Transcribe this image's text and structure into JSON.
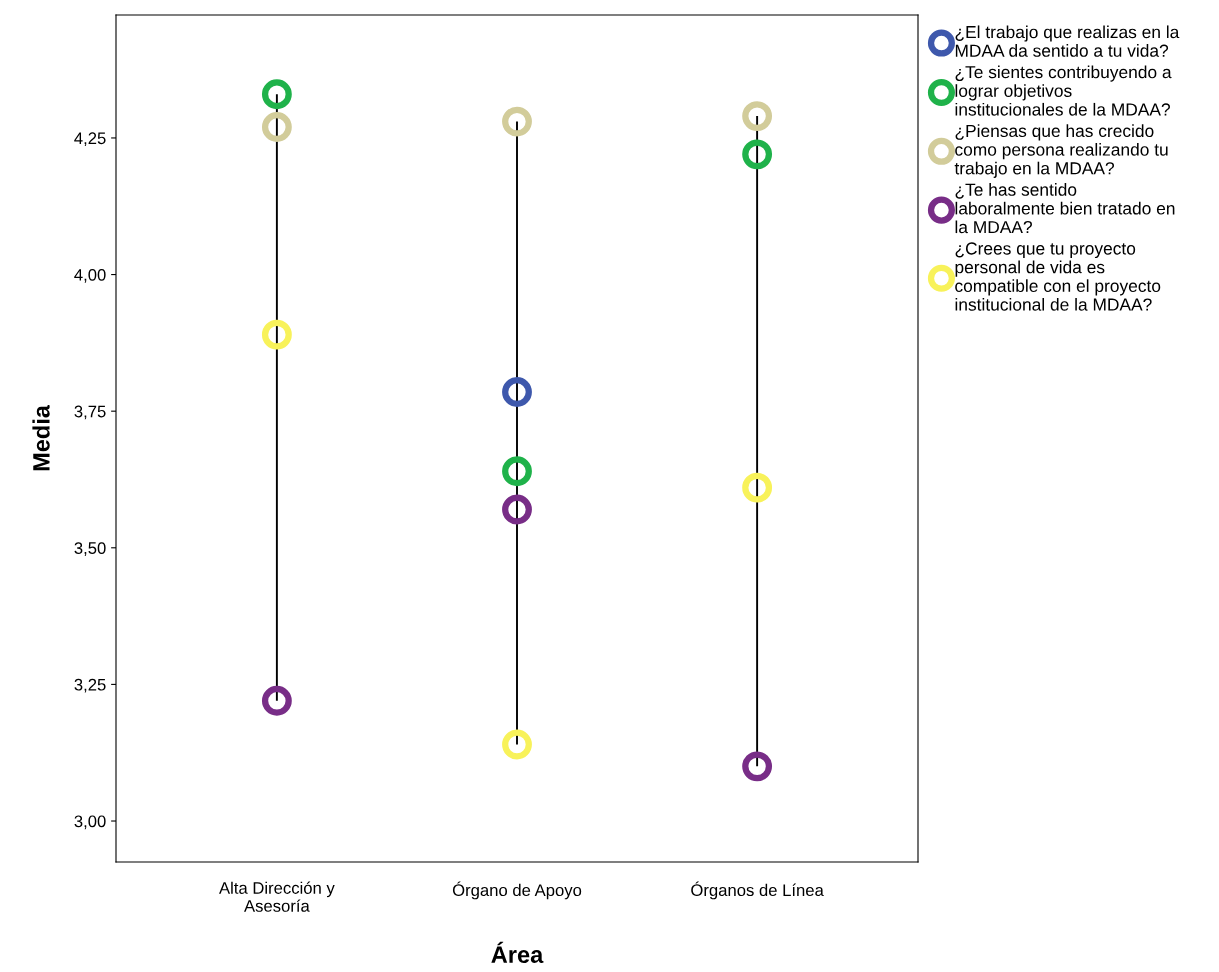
{
  "chart_data": {
    "type": "scatter",
    "xlabel": "Área",
    "ylabel": "Media",
    "categories": [
      "Alta Dirección y\nAsesoría",
      "Órgano de Apoyo",
      "Órganos de Línea"
    ],
    "ylim": [
      2.925,
      4.475
    ],
    "yticks": [
      {
        "value": 3.0,
        "label": "3,00"
      },
      {
        "value": 3.25,
        "label": "3,25"
      },
      {
        "value": 3.5,
        "label": "3,50"
      },
      {
        "value": 3.75,
        "label": "3,75"
      },
      {
        "value": 4.0,
        "label": "4,00"
      },
      {
        "value": 4.25,
        "label": "4,25"
      }
    ],
    "grid": false,
    "legend": "right",
    "marker": "circle",
    "series": [
      {
        "type": "bar",
        "color": "#000000",
        "base": [
          3.22,
          3.14,
          3.1
        ],
        "values": [
          1.11,
          1.14,
          1.19
        ]
      },
      {
        "name": "¿El trabajo que realizas en la\nMDAA da sentido a tu vida?",
        "color": "#3e58ac",
        "values": [
          null,
          3.785,
          null
        ]
      },
      {
        "name": "¿Te sientes contribuyendo a\nlograr objetivos\ninstitucionales de la MDAA?",
        "color": "#1fb24a",
        "values": [
          4.33,
          3.64,
          4.22
        ]
      },
      {
        "name": "¿Piensas que has crecido\ncomo persona realizando tu\ntrabajo en la MDAA?",
        "color": "#d2cc9a",
        "values": [
          4.27,
          4.28,
          4.29
        ]
      },
      {
        "name": "¿Te has sentido\nlaboralmente bien tratado en\nla MDAA?",
        "color": "#782d87",
        "values": [
          3.22,
          3.57,
          3.1
        ]
      },
      {
        "name": "¿Crees que tu proyecto\npersonal de vida es\ncompatible con el proyecto\ninstitucional de la MDAA?",
        "color": "#f8f25a",
        "values": [
          3.89,
          3.14,
          3.61
        ]
      }
    ]
  }
}
